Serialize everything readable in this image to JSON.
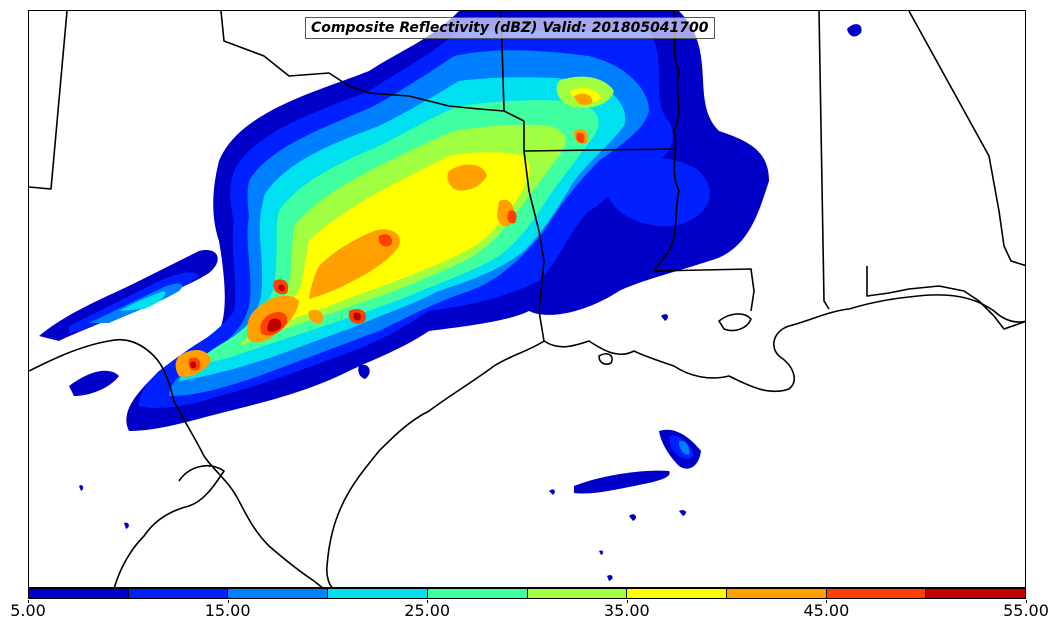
{
  "title": "Composite Reflectivity (dBZ) Valid: 201805041700",
  "colorbar": {
    "min": 5.0,
    "max": 55.0,
    "step": 5.0,
    "colors": [
      "#0000c8",
      "#0020ff",
      "#0080ff",
      "#00e0f0",
      "#40ffa0",
      "#a0ff40",
      "#ffff00",
      "#ffa000",
      "#ff4000",
      "#c00000"
    ],
    "tick_labels": [
      "5.00",
      "15.00",
      "25.00",
      "35.00",
      "45.00",
      "55.00"
    ]
  }
}
